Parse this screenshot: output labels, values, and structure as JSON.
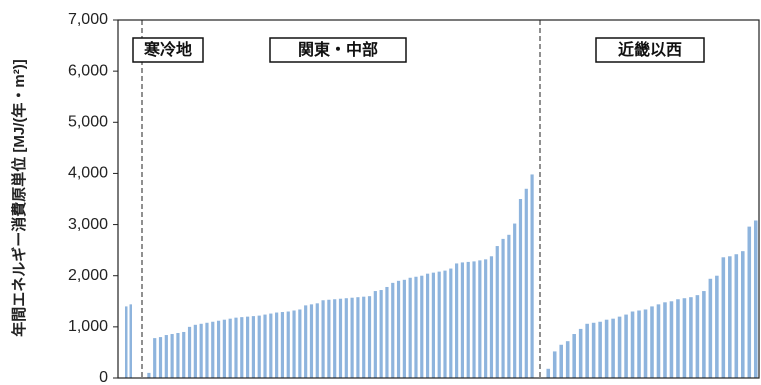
{
  "chart_data": {
    "type": "bar",
    "ylabel": "年間エネルギー消費原単位 [MJ/(年・m²)]",
    "ylim": [
      0,
      7000
    ],
    "yticks": [
      0,
      1000,
      2000,
      3000,
      4000,
      5000,
      6000,
      7000
    ],
    "ytick_labels": [
      "0",
      "1,000",
      "2,000",
      "3,000",
      "4,000",
      "5,000",
      "6,000",
      "7,000"
    ],
    "grid": false,
    "bar_color": "#8eb4dd",
    "regions": [
      {
        "label": "寒冷地",
        "values": [
          1400,
          1440
        ]
      },
      {
        "label": "関東・中部",
        "values": [
          100,
          780,
          800,
          840,
          860,
          880,
          900,
          1000,
          1040,
          1060,
          1080,
          1100,
          1120,
          1140,
          1160,
          1180,
          1190,
          1200,
          1210,
          1220,
          1240,
          1260,
          1280,
          1290,
          1300,
          1320,
          1340,
          1420,
          1440,
          1460,
          1520,
          1530,
          1540,
          1550,
          1560,
          1570,
          1580,
          1590,
          1600,
          1700,
          1720,
          1780,
          1860,
          1900,
          1920,
          1960,
          1980,
          2000,
          2040,
          2060,
          2080,
          2100,
          2140,
          2240,
          2260,
          2270,
          2280,
          2300,
          2320,
          2380,
          2580,
          2720,
          2800,
          3020,
          3500,
          3700,
          3980
        ]
      },
      {
        "label": "近畿以西",
        "values": [
          180,
          520,
          650,
          720,
          860,
          960,
          1060,
          1080,
          1100,
          1140,
          1160,
          1200,
          1240,
          1300,
          1320,
          1340,
          1400,
          1440,
          1480,
          1500,
          1540,
          1560,
          1580,
          1620,
          1700,
          1940,
          2000,
          2360,
          2380,
          2420,
          2480,
          2960,
          3080
        ]
      }
    ]
  }
}
